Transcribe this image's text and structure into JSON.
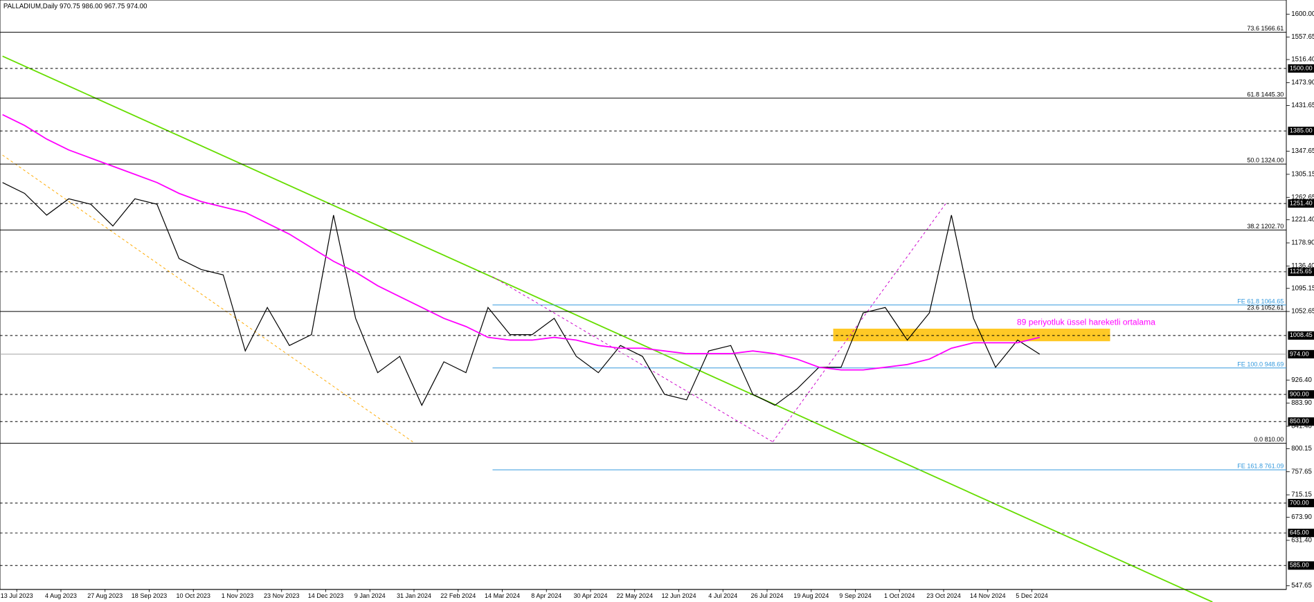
{
  "chart_data": {
    "type": "line",
    "title": "PALLADIUM,Daily  970.75 986.00 967.75 974.00",
    "annotation": "89 periyotluk üssel hareketli ortalama",
    "annotation_color": "#ff00ff",
    "xtick_labels": [
      "13 Jul 2023",
      "4 Aug 2023",
      "27 Aug 2023",
      "18 Sep 2023",
      "10 Oct 2023",
      "1 Nov 2023",
      "23 Nov 2023",
      "14 Dec 2023",
      "9 Jan 2024",
      "31 Jan 2024",
      "22 Feb 2024",
      "14 Mar 2024",
      "8 Apr 2024",
      "30 Apr 2024",
      "22 May 2024",
      "12 Jun 2024",
      "4 Jul 2024",
      "26 Jul 2024",
      "19 Aug 2024",
      "9 Sep 2024",
      "1 Oct 2024",
      "23 Oct 2024",
      "14 Nov 2024",
      "5 Dec 2024"
    ],
    "series": [
      {
        "color": "#000000",
        "values": [
          1290,
          1270,
          1230,
          1260,
          1250,
          1210,
          1260,
          1250,
          1150,
          1130,
          1120,
          980,
          1060,
          990,
          1010,
          1230,
          1040,
          940,
          970,
          880,
          960,
          940,
          1060,
          1010,
          1010,
          1040,
          970,
          940,
          990,
          970,
          900,
          890,
          980,
          990,
          900,
          880,
          910,
          950,
          950,
          1050,
          1060,
          1000,
          1050,
          1230,
          1040,
          950,
          1000,
          974
        ]
      },
      {
        "color": "#ff00ff",
        "values": [
          1415,
          1395,
          1370,
          1350,
          1335,
          1320,
          1305,
          1290,
          1270,
          1255,
          1245,
          1235,
          1215,
          1195,
          1170,
          1145,
          1125,
          1100,
          1080,
          1060,
          1040,
          1025,
          1005,
          1000,
          1000,
          1005,
          1000,
          990,
          985,
          985,
          980,
          975,
          975,
          975,
          980,
          975,
          965,
          950,
          945,
          945,
          950,
          955,
          965,
          985,
          995,
          995,
          995,
          1005
        ]
      }
    ],
    "ylim": [
      541,
      1626
    ],
    "yticks": [
      {
        "value": 1600,
        "label": "1600.00"
      },
      1557.65,
      {
        "value": 1516.4,
        "label": "1516.40"
      },
      {
        "value": 1473.9,
        "label": "1473.90"
      },
      1431.65,
      1347.65,
      1305.15,
      1262.65,
      {
        "value": 1221.4,
        "label": "1221.40"
      },
      {
        "value": 1178.9,
        "label": "1178.90"
      },
      {
        "value": 1136.4,
        "label": "1136.40"
      },
      1095.15,
      1052.65,
      {
        "value": 926.4,
        "label": "926.40"
      },
      {
        "value": 883.9,
        "label": "883.90"
      },
      {
        "value": 841.4,
        "label": "841.40"
      },
      800.15,
      757.65,
      715.15,
      {
        "value": 673.9,
        "label": "673.90"
      },
      {
        "value": 631.4,
        "label": "631.40"
      },
      547.65
    ],
    "levels": [
      {
        "value": 1566.61,
        "label": "73.6 1566.61",
        "style": "fib",
        "color": "#000000"
      },
      {
        "value": 1500,
        "label": "1500.00",
        "style": "dashed",
        "color": "#000000"
      },
      {
        "value": 1445.3,
        "label": "61.8 1445.30",
        "style": "fib",
        "color": "#000000"
      },
      {
        "value": 1385,
        "label": "1385.00",
        "style": "dashed",
        "color": "#000000"
      },
      {
        "value": 1324,
        "label": "50.0 1324.00",
        "style": "fib",
        "color": "#000000"
      },
      {
        "value": 1251.4,
        "label": "1251.40",
        "style": "dashed",
        "color": "#000000"
      },
      {
        "value": 1202.7,
        "label": "38.2 1202.70",
        "style": "fib",
        "color": "#000000"
      },
      {
        "value": 1125.65,
        "label": "1125.65",
        "style": "dashed",
        "color": "#000000"
      },
      {
        "value": 1064.65,
        "label": "FE 61.8 1064.65",
        "style": "fe",
        "color": "#3399dd"
      },
      {
        "value": 1052.61,
        "label": "23.6 1052.61",
        "style": "fib",
        "color": "#000000"
      },
      {
        "value": 1008.45,
        "label": "1008.45",
        "style": "dashed",
        "color": "#000000"
      },
      {
        "value": 974,
        "label": "974.00",
        "style": "current",
        "color": "#a0a0a0"
      },
      {
        "value": 948.69,
        "label": "FE 100.0 948.69",
        "style": "fe",
        "color": "#3399dd"
      },
      {
        "value": 900,
        "label": "900.00",
        "style": "dashed",
        "color": "#000000"
      },
      {
        "value": 850,
        "label": "850.00",
        "style": "dashed",
        "color": "#000000"
      },
      {
        "value": 810,
        "label": "0.0 810.00",
        "style": "fib",
        "color": "#000000"
      },
      {
        "value": 761.09,
        "label": "FE 161.8 761.09",
        "style": "fe",
        "color": "#3399dd"
      },
      {
        "value": 700,
        "label": "700.00",
        "style": "dashed",
        "color": "#000000"
      },
      {
        "value": 645,
        "label": "645.00",
        "style": "dashed",
        "color": "#000000"
      },
      {
        "value": 585,
        "label": "585.00",
        "style": "dashed",
        "color": "#000000"
      }
    ]
  }
}
